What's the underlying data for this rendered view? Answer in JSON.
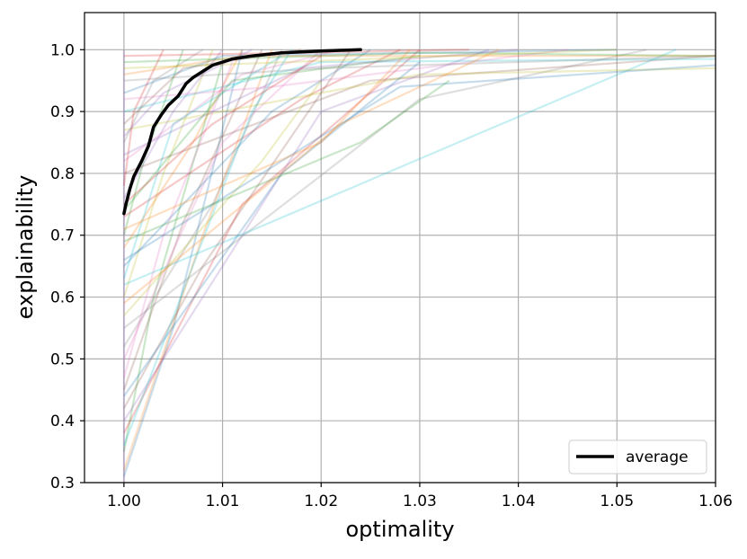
{
  "chart_data": {
    "type": "line",
    "xlabel": "optimality",
    "ylabel": "explainability",
    "xlim": [
      0.996,
      1.06
    ],
    "ylim": [
      0.3,
      1.06
    ],
    "x_ticks": [
      1.0,
      1.01,
      1.02,
      1.03,
      1.04,
      1.05,
      1.06
    ],
    "x_tick_labels": [
      "1.00",
      "1.01",
      "1.02",
      "1.03",
      "1.04",
      "1.05",
      "1.06"
    ],
    "y_ticks": [
      0.3,
      0.4,
      0.5,
      0.6,
      0.7,
      0.8,
      0.9,
      1.0
    ],
    "y_tick_labels": [
      "0.3",
      "0.4",
      "0.5",
      "0.6",
      "0.7",
      "0.8",
      "0.9",
      "1.0"
    ],
    "grid": true,
    "legend": {
      "position": "lower-right",
      "entries": [
        "average"
      ]
    },
    "series": [
      {
        "name": "average",
        "color": "#000000",
        "x": [
          1.0,
          1.0002,
          1.0006,
          1.001,
          1.0018,
          1.0025,
          1.003,
          1.0038,
          1.0045,
          1.0055,
          1.0063,
          1.007,
          1.008,
          1.009,
          1.01,
          1.011,
          1.013,
          1.016,
          1.02,
          1.024
        ],
        "y": [
          0.735,
          0.75,
          0.775,
          0.795,
          0.82,
          0.845,
          0.875,
          0.895,
          0.91,
          0.925,
          0.945,
          0.955,
          0.965,
          0.975,
          0.98,
          0.985,
          0.99,
          0.995,
          0.998,
          1.0
        ]
      }
    ],
    "trial_lines": {
      "opacity": 0.25,
      "colors": [
        "#1f77b4",
        "#ff7f0e",
        "#2ca02c",
        "#d62728",
        "#9467bd",
        "#8c564b",
        "#e377c2",
        "#7f7f7f",
        "#bcbd22",
        "#17becf"
      ],
      "lines": [
        [
          [
            1.0,
            0.31
          ],
          [
            1.005,
            0.55
          ],
          [
            1.012,
            1.0
          ]
        ],
        [
          [
            1.0,
            0.32
          ],
          [
            1.008,
            0.7
          ],
          [
            1.015,
            1.0
          ]
        ],
        [
          [
            1.0,
            0.35
          ],
          [
            1.003,
            0.6
          ],
          [
            1.01,
            0.98
          ]
        ],
        [
          [
            1.0,
            0.38
          ],
          [
            1.012,
            0.75
          ],
          [
            1.03,
            1.0
          ]
        ],
        [
          [
            1.0,
            0.4
          ],
          [
            1.02,
            0.9
          ],
          [
            1.037,
            1.0
          ]
        ],
        [
          [
            1.0,
            0.45
          ],
          [
            1.006,
            0.72
          ],
          [
            1.014,
            1.0
          ]
        ],
        [
          [
            1.0,
            0.5
          ],
          [
            1.01,
            0.85
          ],
          [
            1.02,
            1.0
          ]
        ],
        [
          [
            1.0,
            0.55
          ],
          [
            1.03,
            0.92
          ],
          [
            1.053,
            1.0
          ]
        ],
        [
          [
            1.0,
            0.6
          ],
          [
            1.004,
            0.8
          ],
          [
            1.009,
            1.0
          ]
        ],
        [
          [
            1.0,
            0.62
          ],
          [
            1.056,
            1.0
          ]
        ],
        [
          [
            1.0,
            0.65
          ],
          [
            1.015,
            0.9
          ],
          [
            1.025,
            1.0
          ]
        ],
        [
          [
            1.0,
            0.68
          ],
          [
            1.007,
            0.85
          ],
          [
            1.012,
            1.0
          ]
        ],
        [
          [
            1.0,
            0.7
          ],
          [
            1.002,
            0.82
          ],
          [
            1.006,
            1.0
          ]
        ],
        [
          [
            1.0,
            0.73
          ],
          [
            1.018,
            0.92
          ],
          [
            1.028,
            1.0
          ]
        ],
        [
          [
            1.0,
            0.76
          ],
          [
            1.005,
            0.9
          ],
          [
            1.01,
            1.0
          ]
        ],
        [
          [
            1.0,
            0.8
          ],
          [
            1.025,
            0.95
          ],
          [
            1.06,
            0.99
          ]
        ],
        [
          [
            1.0,
            0.82
          ],
          [
            1.012,
            0.96
          ],
          [
            1.022,
            1.0
          ]
        ],
        [
          [
            1.0,
            0.85
          ],
          [
            1.003,
            0.95
          ],
          [
            1.008,
            1.0
          ]
        ],
        [
          [
            1.0,
            0.87
          ],
          [
            1.03,
            0.96
          ],
          [
            1.06,
            0.97
          ]
        ],
        [
          [
            1.0,
            0.9
          ],
          [
            1.02,
            0.98
          ],
          [
            1.06,
            0.985
          ]
        ],
        [
          [
            1.0,
            0.93
          ],
          [
            1.01,
            0.99
          ],
          [
            1.05,
            1.0
          ]
        ],
        [
          [
            1.0,
            0.96
          ],
          [
            1.012,
            0.99
          ],
          [
            1.06,
            0.99
          ]
        ],
        [
          [
            1.0,
            0.98
          ],
          [
            1.03,
            0.995
          ],
          [
            1.06,
            0.99
          ]
        ],
        [
          [
            1.0,
            0.99
          ],
          [
            1.035,
            1.0
          ]
        ],
        [
          [
            1.0,
            0.3
          ],
          [
            1.0,
            1.0
          ]
        ],
        [
          [
            1.0,
            0.42
          ],
          [
            1.008,
            0.65
          ],
          [
            1.023,
            1.0
          ]
        ],
        [
          [
            1.0,
            0.47
          ],
          [
            1.004,
            0.7
          ],
          [
            1.011,
            0.98
          ]
        ],
        [
          [
            1.0,
            0.52
          ],
          [
            1.009,
            0.75
          ],
          [
            1.016,
            1.0
          ]
        ],
        [
          [
            1.0,
            0.57
          ],
          [
            1.014,
            0.82
          ],
          [
            1.02,
            0.95
          ]
        ],
        [
          [
            1.0,
            0.63
          ],
          [
            1.005,
            0.88
          ],
          [
            1.016,
            0.99
          ]
        ],
        [
          [
            1.0,
            0.66
          ],
          [
            1.028,
            0.94
          ],
          [
            1.06,
            0.975
          ]
        ],
        [
          [
            1.0,
            0.71
          ],
          [
            1.02,
            0.85
          ],
          [
            1.029,
            1.0
          ]
        ],
        [
          [
            1.0,
            0.74
          ],
          [
            1.011,
            0.95
          ],
          [
            1.03,
            0.99
          ]
        ],
        [
          [
            1.0,
            0.78
          ],
          [
            1.001,
            0.9
          ],
          [
            1.004,
            1.0
          ]
        ],
        [
          [
            1.0,
            0.83
          ],
          [
            1.018,
            0.97
          ],
          [
            1.04,
            1.0
          ]
        ],
        [
          [
            1.0,
            0.88
          ],
          [
            1.006,
            0.97
          ],
          [
            1.018,
            1.0
          ]
        ],
        [
          [
            1.0,
            0.92
          ],
          [
            1.015,
            0.94
          ],
          [
            1.045,
            1.0
          ]
        ],
        [
          [
            1.0,
            0.95
          ],
          [
            1.02,
            0.97
          ],
          [
            1.06,
            0.99
          ]
        ],
        [
          [
            1.0,
            0.97
          ],
          [
            1.025,
            0.985
          ],
          [
            1.05,
            1.0
          ]
        ],
        [
          [
            1.0,
            0.36
          ],
          [
            1.013,
            0.9
          ],
          [
            1.017,
            1.0
          ]
        ],
        [
          [
            1.0,
            0.44
          ],
          [
            1.016,
            0.8
          ],
          [
            1.03,
            0.98
          ]
        ],
        [
          [
            1.0,
            0.59
          ],
          [
            1.022,
            0.88
          ],
          [
            1.038,
            1.0
          ]
        ],
        [
          [
            1.0,
            0.69
          ],
          [
            1.024,
            0.85
          ],
          [
            1.033,
            0.95
          ]
        ],
        [
          [
            1.0,
            0.75
          ],
          [
            1.009,
            0.88
          ],
          [
            1.02,
            0.99
          ]
        ],
        [
          [
            1.0,
            0.86
          ],
          [
            1.004,
            0.93
          ],
          [
            1.013,
            1.0
          ]
        ]
      ]
    }
  }
}
